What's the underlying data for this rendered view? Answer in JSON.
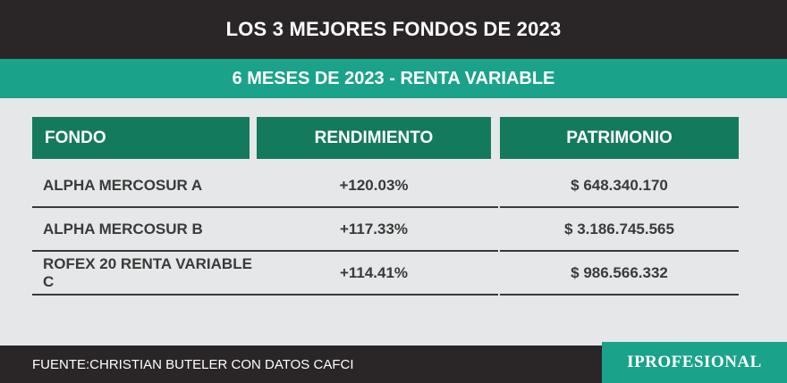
{
  "title": "LOS 3 MEJORES FONDOS DE 2023",
  "subtitle": "6 MESES DE 2023 - RENTA VARIABLE",
  "headers": {
    "fondo": "FONDO",
    "rendimiento": "RENDIMIENTO",
    "patrimonio": "PATRIMONIO"
  },
  "rows": [
    {
      "fondo": "ALPHA MERCOSUR A",
      "rendimiento": "+120.03%",
      "patrimonio": "$ 648.340.170"
    },
    {
      "fondo": "ALPHA MERCOSUR B",
      "rendimiento": "+117.33%",
      "patrimonio": "$ 3.186.745.565"
    },
    {
      "fondo": "ROFEX 20 RENTA VARIABLE C",
      "rendimiento": "+114.41%",
      "patrimonio": "$ 986.566.332"
    }
  ],
  "footer": {
    "source": "FUENTE:CHRISTIAN BUTELER CON DATOS CAFCI",
    "brand": "IPROFESIONAL"
  },
  "colors": {
    "dark": "#2a2627",
    "teal": "#1aa28a",
    "header_green": "#147a5e",
    "background": "#e6e7e8"
  },
  "chart_data": {
    "type": "table",
    "title": "LOS 3 MEJORES FONDOS DE 2023",
    "subtitle": "6 MESES DE 2023 - RENTA VARIABLE",
    "columns": [
      "FONDO",
      "RENDIMIENTO",
      "PATRIMONIO"
    ],
    "rows": [
      [
        "ALPHA MERCOSUR A",
        "+120.03%",
        "$ 648.340.170"
      ],
      [
        "ALPHA MERCOSUR B",
        "+117.33%",
        "$ 3.186.745.565"
      ],
      [
        "ROFEX 20 RENTA VARIABLE C",
        "+114.41%",
        "$ 986.566.332"
      ]
    ]
  }
}
